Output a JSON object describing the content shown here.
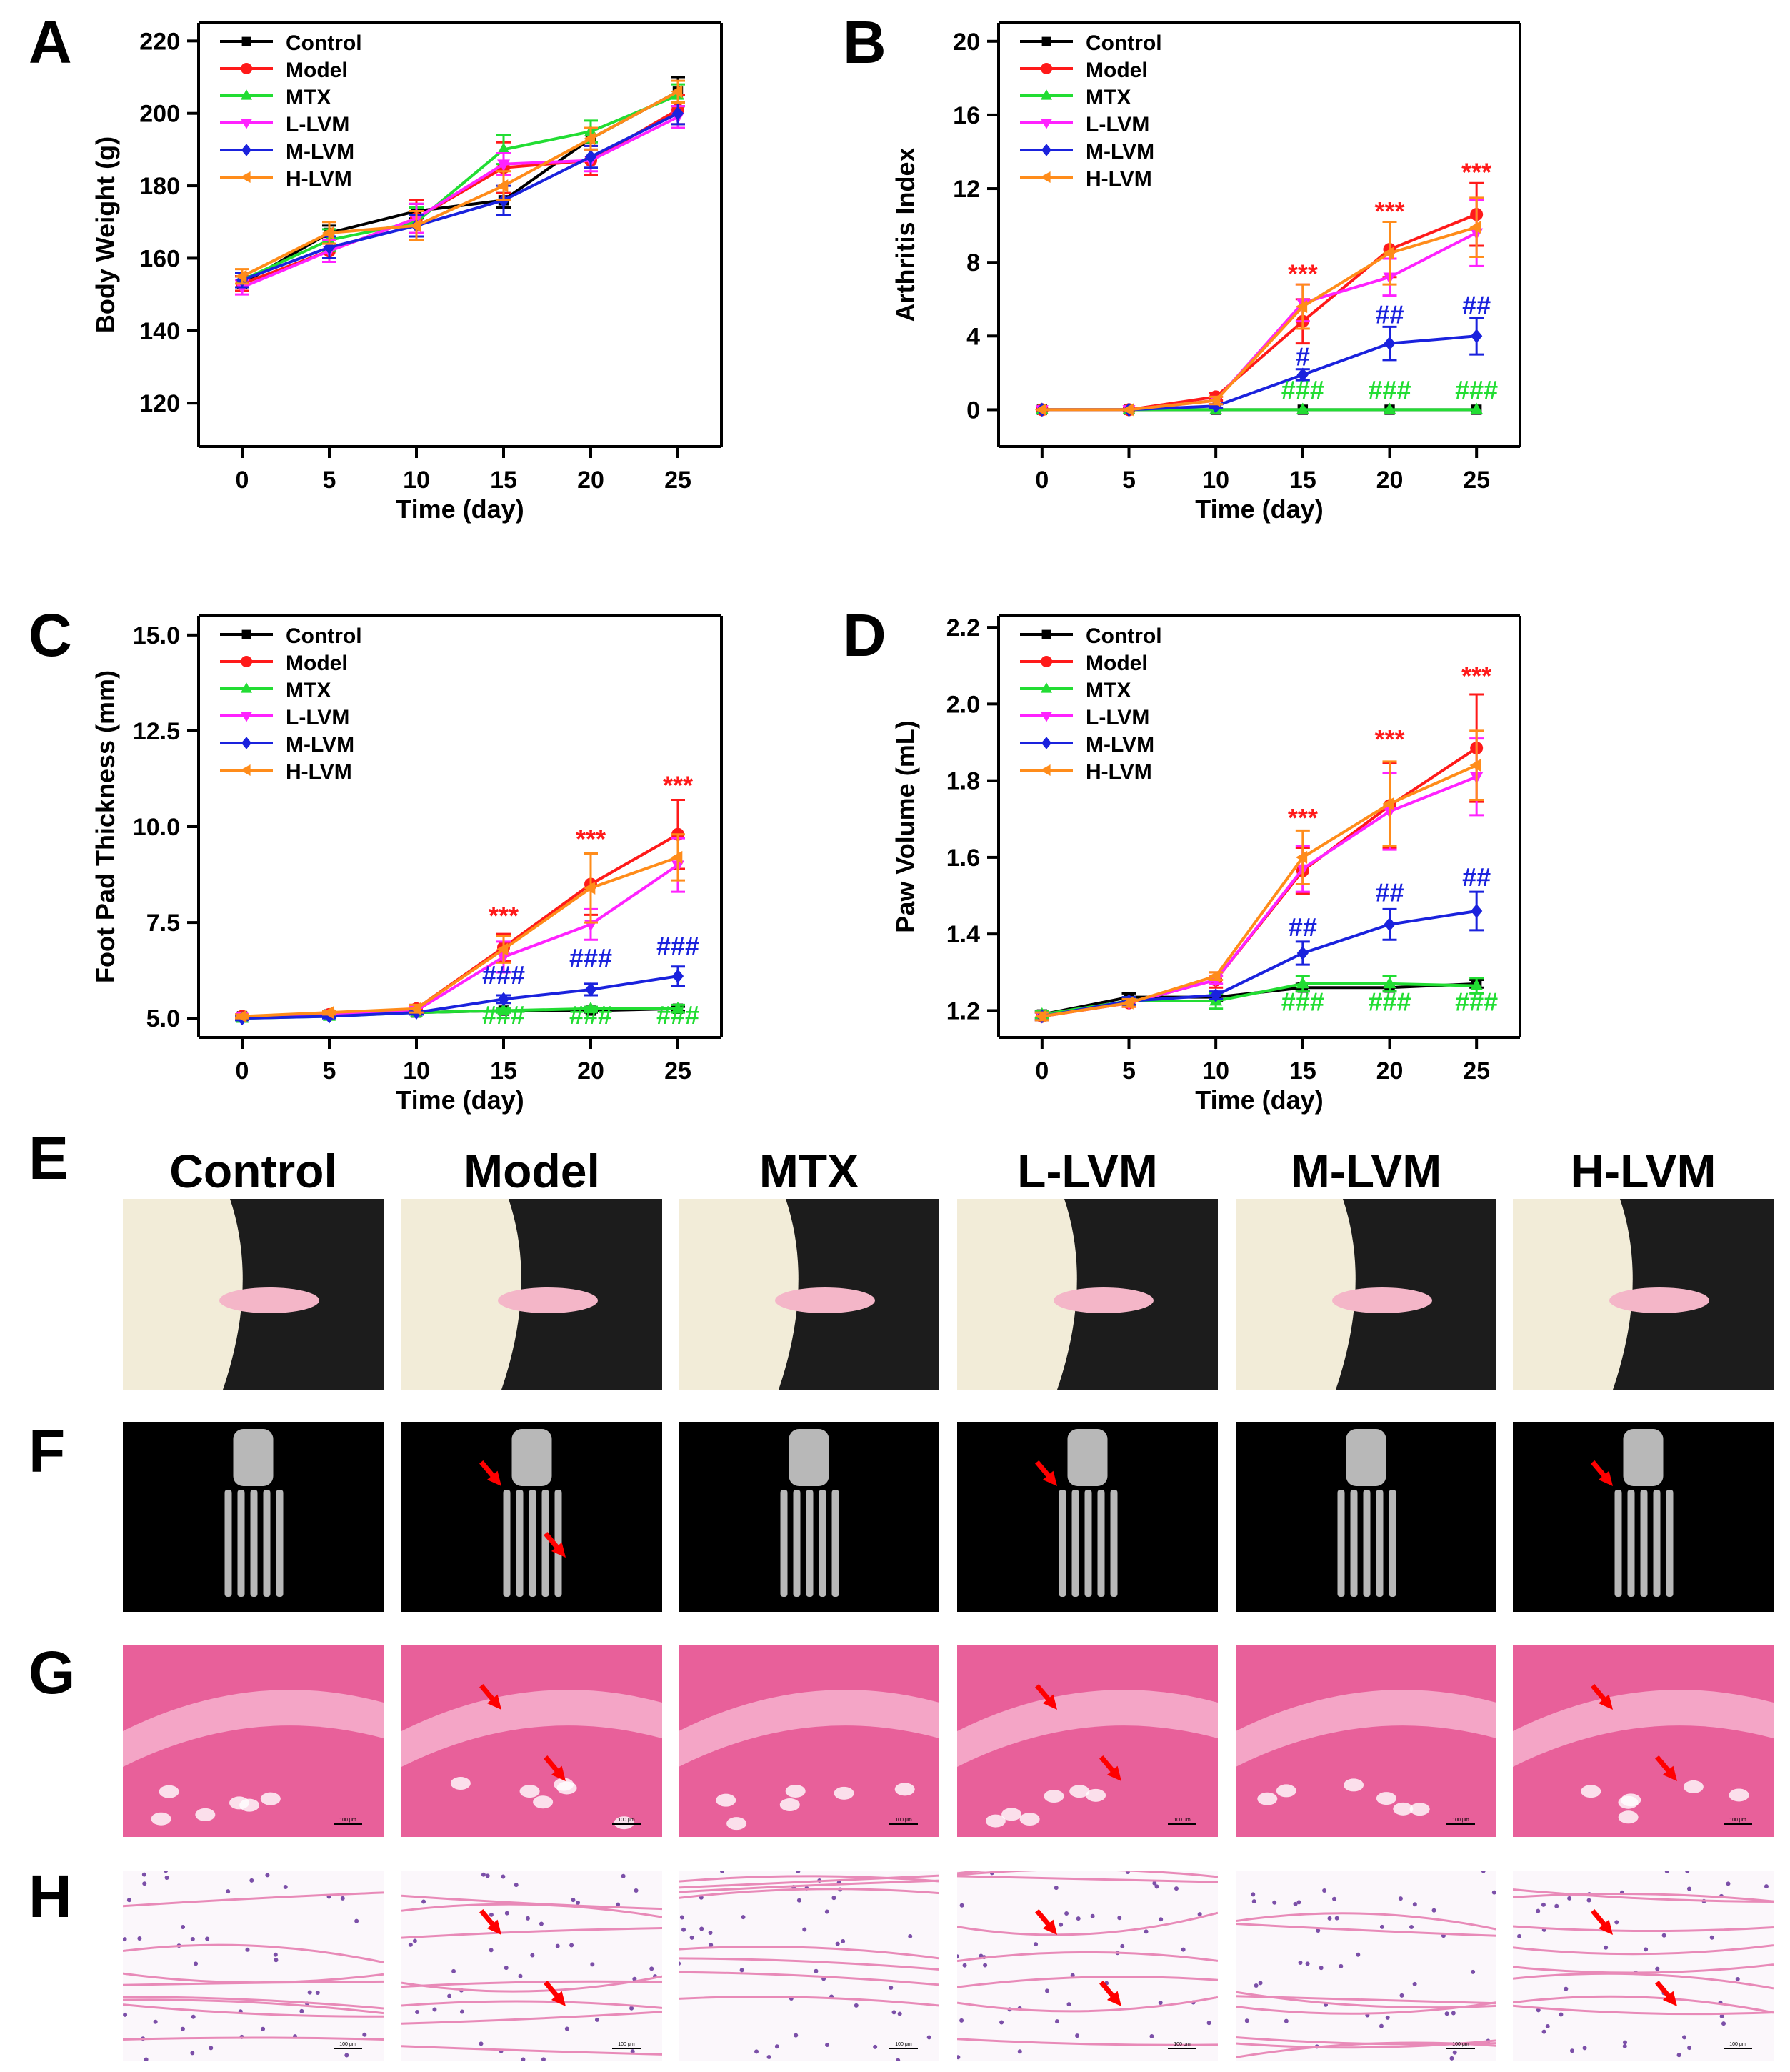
{
  "panel_letters": [
    "A",
    "B",
    "C",
    "D",
    "E",
    "F",
    "G",
    "H"
  ],
  "series_names": [
    "Control",
    "Model",
    "MTX",
    "L-LVM",
    "M-LVM",
    "H-LVM"
  ],
  "colors": {
    "Control": "#000000",
    "Model": "#ff1a1a",
    "MTX": "#22dd33",
    "L-LVM": "#ff22ff",
    "M-LVM": "#1a22dd",
    "H-LVM": "#ff8c1a",
    "model_star": "#ff1a1a",
    "mlvm_hash": "#1a22dd",
    "mtx_hash": "#22dd33",
    "photo_bg": "#1c1c1c",
    "fur": "#f2ecd8",
    "paw": "#f4b6c8",
    "ct_bg": "#000000",
    "bone": "#b8b8b8",
    "he_bg": "#f4a5c6",
    "he_pink": "#e8609a",
    "arrow": "#ff0000"
  },
  "chart_data": [
    {
      "panel": "A",
      "type": "line",
      "xlabel": "Time (day)",
      "ylabel": "Body Weight (g)",
      "x": [
        0,
        5,
        10,
        15,
        20,
        25
      ],
      "xlim": [
        -2.5,
        27.5
      ],
      "ylim": [
        108,
        225
      ],
      "yticks": [
        120,
        140,
        160,
        180,
        200,
        220
      ],
      "legend": "top-left",
      "series": [
        {
          "name": "Control",
          "marker": "square",
          "values": [
            153,
            167,
            173,
            176,
            193,
            206
          ],
          "err": [
            2,
            2,
            2,
            2,
            3,
            4
          ]
        },
        {
          "name": "Model",
          "marker": "circle",
          "values": [
            153,
            162,
            171,
            185,
            187,
            201
          ],
          "err": [
            2,
            3,
            5,
            7,
            4,
            4
          ]
        },
        {
          "name": "MTX",
          "marker": "triangle-up",
          "values": [
            154,
            165,
            170,
            190,
            195,
            205
          ],
          "err": [
            2,
            3,
            4,
            4,
            3,
            3
          ]
        },
        {
          "name": "L-LVM",
          "marker": "triangle-down",
          "values": [
            152,
            162,
            171,
            186,
            187,
            199
          ],
          "err": [
            2,
            3,
            4,
            3,
            3,
            3
          ]
        },
        {
          "name": "M-LVM",
          "marker": "diamond",
          "values": [
            154,
            163,
            169,
            176,
            188,
            200
          ],
          "err": [
            2,
            3,
            3,
            4,
            3,
            3
          ]
        },
        {
          "name": "H-LVM",
          "marker": "triangle-left",
          "values": [
            155,
            167,
            169,
            180,
            193,
            206
          ],
          "err": [
            2,
            3,
            4,
            4,
            3,
            3
          ]
        }
      ],
      "annotations": []
    },
    {
      "panel": "B",
      "type": "line",
      "xlabel": "Time (day)",
      "ylabel": "Arthritis Index",
      "x": [
        0,
        5,
        10,
        15,
        20,
        25
      ],
      "xlim": [
        -2.5,
        27.5
      ],
      "ylim": [
        -2,
        21
      ],
      "yticks": [
        0,
        4,
        8,
        12,
        16,
        20
      ],
      "legend": "top-left",
      "series": [
        {
          "name": "Control",
          "marker": "square",
          "values": [
            0,
            0,
            0,
            0,
            0,
            0
          ],
          "err": [
            0,
            0,
            0,
            0,
            0,
            0
          ]
        },
        {
          "name": "Model",
          "marker": "circle",
          "values": [
            0,
            0,
            0.7,
            4.8,
            8.7,
            10.6
          ],
          "err": [
            0,
            0,
            0.2,
            1.2,
            1.5,
            1.7
          ]
        },
        {
          "name": "MTX",
          "marker": "triangle-up",
          "values": [
            0,
            0,
            0,
            0,
            0,
            0
          ],
          "err": [
            0,
            0,
            0,
            0,
            0,
            0
          ]
        },
        {
          "name": "L-LVM",
          "marker": "triangle-down",
          "values": [
            0,
            0,
            0.5,
            5.8,
            7.2,
            9.6
          ],
          "err": [
            0,
            0,
            0.2,
            1.0,
            1.0,
            1.8
          ]
        },
        {
          "name": "M-LVM",
          "marker": "diamond",
          "values": [
            0,
            0,
            0.2,
            1.9,
            3.6,
            4.0
          ],
          "err": [
            0,
            0,
            0.1,
            0.3,
            0.9,
            1.0
          ]
        },
        {
          "name": "H-LVM",
          "marker": "triangle-left",
          "values": [
            0,
            0,
            0.5,
            5.6,
            8.5,
            9.9
          ],
          "err": [
            0,
            0,
            0.2,
            1.2,
            1.7,
            1.6
          ]
        }
      ],
      "annotations": [
        {
          "x": 15,
          "y": 6.9,
          "text": "***",
          "color": "model_star"
        },
        {
          "x": 20,
          "y": 10.3,
          "text": "***",
          "color": "model_star"
        },
        {
          "x": 25,
          "y": 12.4,
          "text": "***",
          "color": "model_star"
        },
        {
          "x": 15,
          "y": 2.4,
          "text": "#",
          "color": "mlvm_hash"
        },
        {
          "x": 20,
          "y": 4.7,
          "text": "##",
          "color": "mlvm_hash"
        },
        {
          "x": 25,
          "y": 5.2,
          "text": "##",
          "color": "mlvm_hash"
        },
        {
          "x": 15,
          "y": 0.6,
          "text": "###",
          "color": "mtx_hash"
        },
        {
          "x": 20,
          "y": 0.6,
          "text": "###",
          "color": "mtx_hash"
        },
        {
          "x": 25,
          "y": 0.6,
          "text": "###",
          "color": "mtx_hash"
        }
      ]
    },
    {
      "panel": "C",
      "type": "line",
      "xlabel": "Time (day)",
      "ylabel": "Foot Pad Thickness (mm)",
      "x": [
        0,
        5,
        10,
        15,
        20,
        25
      ],
      "xlim": [
        -2.5,
        27.5
      ],
      "ylim": [
        4.5,
        15.5
      ],
      "yticks": [
        5.0,
        7.5,
        10.0,
        12.5,
        15.0
      ],
      "ytick_labels": [
        "5.0",
        "7.5",
        "10.0",
        "12.5",
        "15.0"
      ],
      "legend": "top-left",
      "series": [
        {
          "name": "Control",
          "marker": "square",
          "values": [
            5.05,
            5.1,
            5.15,
            5.2,
            5.2,
            5.25
          ],
          "err": [
            0.05,
            0.05,
            0.05,
            0.05,
            0.05,
            0.05
          ]
        },
        {
          "name": "Model",
          "marker": "circle",
          "values": [
            5.05,
            5.1,
            5.25,
            6.85,
            8.5,
            9.8
          ],
          "err": [
            0.05,
            0.05,
            0.1,
            0.35,
            0.8,
            0.9
          ]
        },
        {
          "name": "MTX",
          "marker": "triangle-up",
          "values": [
            5.0,
            5.05,
            5.15,
            5.2,
            5.25,
            5.25
          ],
          "err": [
            0.05,
            0.05,
            0.05,
            0.05,
            0.05,
            0.1
          ]
        },
        {
          "name": "L-LVM",
          "marker": "triangle-down",
          "values": [
            5.05,
            5.1,
            5.2,
            6.6,
            7.45,
            9.0
          ],
          "err": [
            0.05,
            0.05,
            0.1,
            0.4,
            0.4,
            0.7
          ]
        },
        {
          "name": "M-LVM",
          "marker": "diamond",
          "values": [
            5.0,
            5.05,
            5.15,
            5.5,
            5.75,
            6.1
          ],
          "err": [
            0.05,
            0.05,
            0.05,
            0.1,
            0.15,
            0.25
          ]
        },
        {
          "name": "H-LVM",
          "marker": "triangle-left",
          "values": [
            5.05,
            5.15,
            5.25,
            6.8,
            8.4,
            9.2
          ],
          "err": [
            0.05,
            0.05,
            0.1,
            0.35,
            0.9,
            0.6
          ]
        }
      ],
      "annotations": [
        {
          "x": 15,
          "y": 7.45,
          "text": "***",
          "color": "model_star"
        },
        {
          "x": 20,
          "y": 9.45,
          "text": "***",
          "color": "model_star"
        },
        {
          "x": 25,
          "y": 10.85,
          "text": "***",
          "color": "model_star"
        },
        {
          "x": 15,
          "y": 5.9,
          "text": "###",
          "color": "mlvm_hash"
        },
        {
          "x": 20,
          "y": 6.35,
          "text": "###",
          "color": "mlvm_hash"
        },
        {
          "x": 25,
          "y": 6.65,
          "text": "###",
          "color": "mlvm_hash"
        },
        {
          "x": 15,
          "y": 4.85,
          "text": "###",
          "color": "mtx_hash"
        },
        {
          "x": 20,
          "y": 4.85,
          "text": "###",
          "color": "mtx_hash"
        },
        {
          "x": 25,
          "y": 4.85,
          "text": "###",
          "color": "mtx_hash"
        }
      ]
    },
    {
      "panel": "D",
      "type": "line",
      "xlabel": "Time (day)",
      "ylabel": "Paw Volume (mL)",
      "x": [
        0,
        5,
        10,
        15,
        20,
        25
      ],
      "xlim": [
        -2.5,
        27.5
      ],
      "ylim": [
        1.13,
        2.23
      ],
      "yticks": [
        1.2,
        1.4,
        1.6,
        1.8,
        2.0,
        2.2
      ],
      "ytick_labels": [
        "1.2",
        "1.4",
        "1.6",
        "1.8",
        "2.0",
        "2.2"
      ],
      "legend": "top-left",
      "series": [
        {
          "name": "Control",
          "marker": "square",
          "values": [
            1.19,
            1.235,
            1.235,
            1.26,
            1.26,
            1.27
          ],
          "err": [
            0.01,
            0.01,
            0.01,
            0.01,
            0.01,
            0.01
          ]
        },
        {
          "name": "Model",
          "marker": "circle",
          "values": [
            1.185,
            1.22,
            1.28,
            1.565,
            1.735,
            1.885
          ],
          "err": [
            0.01,
            0.01,
            0.02,
            0.06,
            0.11,
            0.14
          ]
        },
        {
          "name": "MTX",
          "marker": "triangle-up",
          "values": [
            1.19,
            1.225,
            1.225,
            1.27,
            1.27,
            1.265
          ],
          "err": [
            0.01,
            0.01,
            0.02,
            0.02,
            0.02,
            0.02
          ]
        },
        {
          "name": "L-LVM",
          "marker": "triangle-down",
          "values": [
            1.185,
            1.22,
            1.28,
            1.57,
            1.72,
            1.81
          ],
          "err": [
            0.01,
            0.01,
            0.01,
            0.06,
            0.1,
            0.1
          ]
        },
        {
          "name": "M-LVM",
          "marker": "diamond",
          "values": [
            1.185,
            1.225,
            1.24,
            1.35,
            1.425,
            1.46
          ],
          "err": [
            0.01,
            0.01,
            0.01,
            0.03,
            0.04,
            0.05
          ]
        },
        {
          "name": "H-LVM",
          "marker": "triangle-left",
          "values": [
            1.185,
            1.22,
            1.29,
            1.6,
            1.74,
            1.84
          ],
          "err": [
            0.01,
            0.01,
            0.01,
            0.07,
            0.11,
            0.09
          ]
        }
      ],
      "annotations": [
        {
          "x": 15,
          "y": 1.68,
          "text": "***",
          "color": "model_star"
        },
        {
          "x": 20,
          "y": 1.885,
          "text": "***",
          "color": "model_star"
        },
        {
          "x": 25,
          "y": 2.05,
          "text": "***",
          "color": "model_star"
        },
        {
          "x": 15,
          "y": 1.395,
          "text": "##",
          "color": "mlvm_hash"
        },
        {
          "x": 20,
          "y": 1.485,
          "text": "##",
          "color": "mlvm_hash"
        },
        {
          "x": 25,
          "y": 1.525,
          "text": "##",
          "color": "mlvm_hash"
        },
        {
          "x": 15,
          "y": 1.2,
          "text": "###",
          "color": "mtx_hash"
        },
        {
          "x": 20,
          "y": 1.2,
          "text": "###",
          "color": "mtx_hash"
        },
        {
          "x": 25,
          "y": 1.2,
          "text": "###",
          "color": "mtx_hash"
        }
      ]
    }
  ],
  "image_grid": {
    "column_titles": [
      "Control",
      "Model",
      "MTX",
      "L-LVM",
      "M-LVM",
      "H-LVM"
    ],
    "scale_bar_label": "100 μm",
    "rows": [
      {
        "panel": "E",
        "kind": "photo",
        "arrows": [
          0,
          0,
          0,
          0,
          0,
          0
        ]
      },
      {
        "panel": "F",
        "kind": "microct",
        "arrows": [
          0,
          2,
          0,
          1,
          0,
          1
        ]
      },
      {
        "panel": "G",
        "kind": "he_joint",
        "arrows": [
          0,
          2,
          0,
          2,
          0,
          2
        ]
      },
      {
        "panel": "H",
        "kind": "he_tissue",
        "arrows": [
          0,
          2,
          0,
          2,
          0,
          2
        ]
      }
    ]
  }
}
